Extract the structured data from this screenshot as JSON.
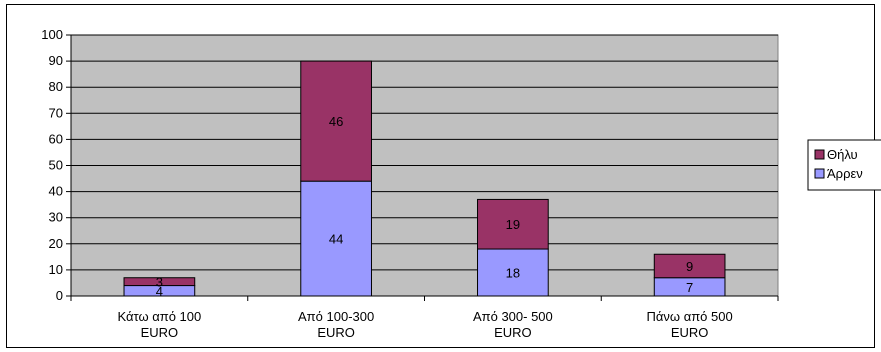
{
  "chart_data": {
    "type": "bar",
    "stacked": true,
    "title": "",
    "xlabel": "",
    "ylabel": "",
    "ylim": [
      0,
      100
    ],
    "yticks": [
      0,
      10,
      20,
      30,
      40,
      50,
      60,
      70,
      80,
      90,
      100
    ],
    "categories": [
      [
        "Κάτω από 100",
        "EURO"
      ],
      [
        "Από 100-300",
        "EURO"
      ],
      [
        "Από 300- 500",
        "EURO"
      ],
      [
        "Πάνω από 500",
        "EURO"
      ]
    ],
    "series": [
      {
        "name": "Άρρεν",
        "values": [
          4,
          44,
          18,
          7
        ],
        "color": "#9999ff"
      },
      {
        "name": "Θήλυ",
        "values": [
          3,
          46,
          19,
          9
        ],
        "color": "#993366"
      }
    ],
    "plot_background": "#c0c0c0",
    "grid": true,
    "legend_position": "right"
  }
}
